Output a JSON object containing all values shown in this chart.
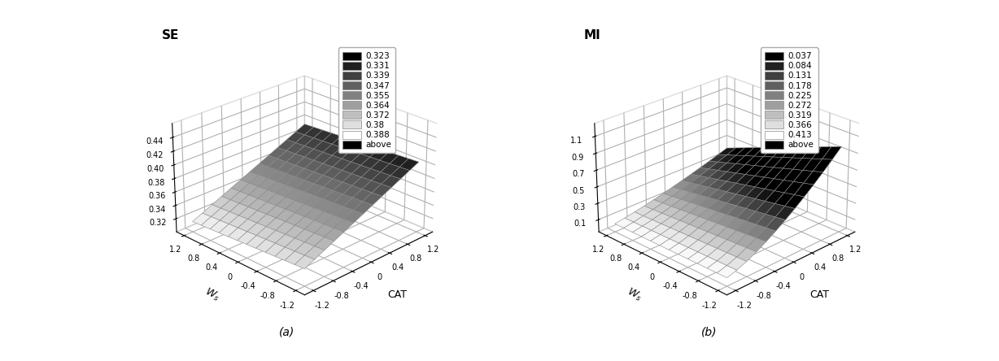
{
  "axis_ticks": [
    -1.2,
    -0.8,
    -0.4,
    0.0,
    0.4,
    0.8,
    1.2
  ],
  "se_title": "SE",
  "se_zlim": [
    0.3,
    0.46
  ],
  "se_zticks": [
    0.32,
    0.34,
    0.36,
    0.38,
    0.4,
    0.42,
    0.44
  ],
  "se_legend_levels": [
    0.323,
    0.331,
    0.339,
    0.347,
    0.355,
    0.364,
    0.372,
    0.38,
    0.388
  ],
  "se_legend_label": [
    "0.323",
    "0.331",
    "0.339",
    "0.347",
    "0.355",
    "0.364",
    "0.372",
    "0.38",
    "0.388",
    "above"
  ],
  "se_cmap_min": 0.31,
  "se_cmap_max": 0.41,
  "mi_title": "MI",
  "mi_zlim": [
    -0.05,
    1.25
  ],
  "mi_zticks": [
    0.1,
    0.3,
    0.5,
    0.7,
    0.9,
    1.1
  ],
  "mi_legend_levels": [
    0.037,
    0.084,
    0.131,
    0.178,
    0.225,
    0.272,
    0.319,
    0.366,
    0.413
  ],
  "mi_legend_label": [
    "0.037",
    "0.084",
    "0.131",
    "0.178",
    "0.225",
    "0.272",
    "0.319",
    "0.366",
    "0.413",
    "above"
  ],
  "mi_cmap_min": 0.037,
  "mi_cmap_max": 0.46,
  "xlabel": "$W_s$",
  "ylabel": "CAT",
  "subtitle_a": "(a)",
  "subtitle_b": "(b)",
  "elev": 25,
  "azim": 225
}
